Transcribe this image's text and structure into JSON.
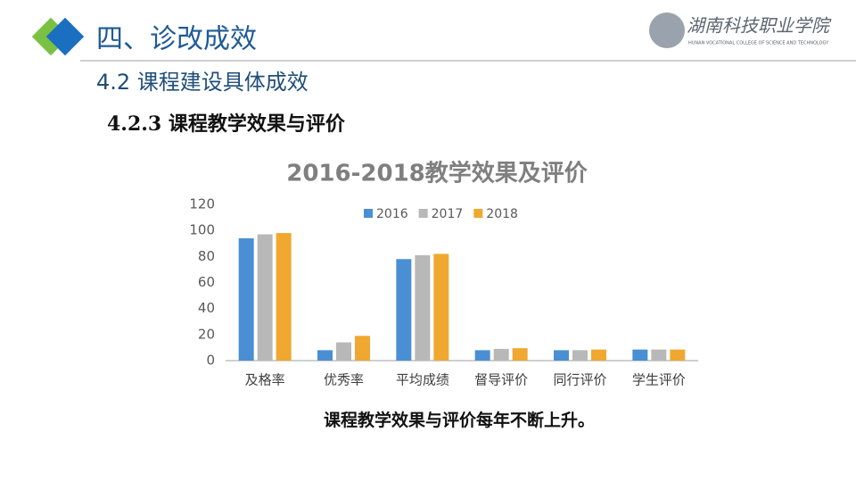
{
  "header": {
    "title": "四、诊改成效",
    "subtitle": "4.2 课程建设具体成效",
    "section": "4.2.3 课程教学效果与评价",
    "logo_name": "湖南科技职业学院",
    "logo_english": "HUNAN VOCATIONAL COLLEGE OF SCIENCE AND TECHNOLOGY"
  },
  "caption": "课程教学效果与评价每年不断上升。",
  "chart_data": {
    "type": "bar",
    "title": "2016-2018教学效果及评价",
    "categories": [
      "及格率",
      "优秀率",
      "平均成绩",
      "督导评价",
      "同行评价",
      "学生评价"
    ],
    "series": [
      {
        "name": "2016",
        "color": "#4a8fd4",
        "values": [
          94,
          8,
          78,
          8,
          8,
          8.5
        ]
      },
      {
        "name": "2017",
        "color": "#b8b8b8",
        "values": [
          97,
          14,
          81,
          9,
          8,
          8.5
        ]
      },
      {
        "name": "2018",
        "color": "#f0a830",
        "values": [
          98,
          19,
          82,
          9.5,
          8.5,
          8.5
        ]
      }
    ],
    "ylim": [
      0,
      120
    ],
    "yticks": [
      0,
      20,
      40,
      60,
      80,
      100,
      120
    ],
    "grid": false,
    "legend": "top"
  }
}
